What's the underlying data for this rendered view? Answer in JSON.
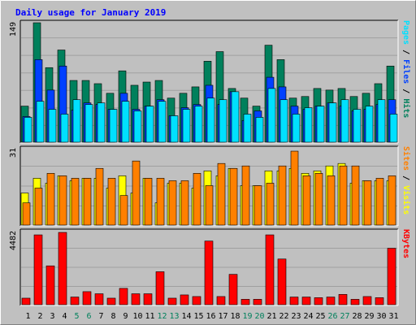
{
  "title": "Daily usage for January 2019",
  "colors": {
    "background": "#c0c0c0",
    "plot": "#c0c0c0",
    "hits": "#00805c",
    "files": "#0040ff",
    "pages": "#00e0ff",
    "visits": "#ffff00",
    "sites": "#ff8000",
    "kbytes": "#ff0000",
    "title": "#0000ff",
    "weekend_label": "#00805c",
    "weekday_label": "#000000"
  },
  "legend_top": [
    {
      "text": "Pages",
      "color": "#00e0ff"
    },
    {
      "text": " / ",
      "color": "#000000"
    },
    {
      "text": "Files",
      "color": "#0040ff"
    },
    {
      "text": " / ",
      "color": "#000000"
    },
    {
      "text": "Hits",
      "color": "#00805c"
    }
  ],
  "legend_mid": [
    {
      "text": "Sites",
      "color": "#ff8000"
    },
    {
      "text": " / ",
      "color": "#000000"
    },
    {
      "text": "Visits",
      "color": "#ffff00"
    }
  ],
  "legend_bot": [
    {
      "text": "KBytes",
      "color": "#ff0000"
    }
  ],
  "chart_data": [
    {
      "type": "bar",
      "title": "Daily usage for January 2019",
      "ylabel": "Pages / Files / Hits",
      "ymax_label": "149",
      "ylim": [
        0,
        149
      ],
      "categories": [
        "1",
        "2",
        "3",
        "4",
        "5",
        "6",
        "7",
        "8",
        "9",
        "10",
        "11",
        "12",
        "13",
        "14",
        "15",
        "16",
        "17",
        "18",
        "19",
        "20",
        "21",
        "22",
        "23",
        "24",
        "25",
        "26",
        "27",
        "28",
        "29",
        "30",
        "31"
      ],
      "weekend_days": [
        5,
        6,
        12,
        13,
        19,
        20,
        26,
        27
      ],
      "series": [
        {
          "name": "Hits",
          "values": [
            45,
            149,
            93,
            115,
            77,
            77,
            73,
            61,
            89,
            71,
            75,
            77,
            55,
            61,
            69,
            101,
            113,
            67,
            55,
            45,
            121,
            103,
            55,
            57,
            67,
            65,
            67,
            57,
            61,
            73,
            95
          ]
        },
        {
          "name": "Files",
          "values": [
            32,
            103,
            65,
            95,
            40,
            49,
            47,
            41,
            61,
            41,
            45,
            53,
            33,
            43,
            47,
            71,
            47,
            63,
            27,
            39,
            81,
            69,
            45,
            41,
            45,
            49,
            45,
            39,
            41,
            47,
            53
          ]
        },
        {
          "name": "Pages",
          "values": [
            31,
            51,
            41,
            35,
            53,
            47,
            49,
            41,
            51,
            39,
            45,
            51,
            33,
            41,
            45,
            55,
            53,
            63,
            35,
            31,
            67,
            53,
            35,
            43,
            45,
            49,
            53,
            41,
            45,
            53,
            35
          ]
        }
      ]
    },
    {
      "type": "bar",
      "ylabel": "Sites / Visits",
      "ymax_label": "31",
      "ylim": [
        0,
        31
      ],
      "categories": [
        "1",
        "2",
        "3",
        "4",
        "5",
        "6",
        "7",
        "8",
        "9",
        "10",
        "11",
        "12",
        "13",
        "14",
        "15",
        "16",
        "17",
        "18",
        "19",
        "20",
        "21",
        "22",
        "23",
        "24",
        "25",
        "26",
        "27",
        "28",
        "29",
        "30",
        "31"
      ],
      "series": [
        {
          "name": "Visits",
          "values": [
            13,
            19,
            17,
            20,
            18,
            19,
            19,
            15,
            20,
            13,
            19,
            9,
            17,
            17,
            15,
            22,
            20,
            23,
            16,
            16,
            22,
            22,
            23,
            21,
            22,
            24,
            25,
            17,
            18,
            18,
            18
          ]
        },
        {
          "name": "Sites",
          "values": [
            9,
            15,
            21,
            20,
            19,
            19,
            23,
            19,
            12,
            26,
            19,
            19,
            18,
            18,
            21,
            16,
            25,
            23,
            24,
            16,
            17,
            24,
            30,
            20,
            21,
            20,
            24,
            24,
            18,
            19,
            20
          ]
        }
      ]
    },
    {
      "type": "bar",
      "ylabel": "KBytes",
      "ymax_label": "4482",
      "ylim": [
        0,
        4482
      ],
      "categories": [
        "1",
        "2",
        "3",
        "4",
        "5",
        "6",
        "7",
        "8",
        "9",
        "10",
        "11",
        "12",
        "13",
        "14",
        "15",
        "16",
        "17",
        "18",
        "19",
        "20",
        "21",
        "22",
        "23",
        "24",
        "25",
        "26",
        "27",
        "28",
        "29",
        "30",
        "31"
      ],
      "series": [
        {
          "name": "KBytes",
          "values": [
            400,
            4280,
            2380,
            4430,
            470,
            800,
            670,
            400,
            1000,
            670,
            670,
            2020,
            400,
            600,
            500,
            3900,
            500,
            1860,
            330,
            330,
            4280,
            2800,
            470,
            470,
            430,
            470,
            630,
            330,
            500,
            430,
            3460
          ]
        }
      ]
    }
  ]
}
